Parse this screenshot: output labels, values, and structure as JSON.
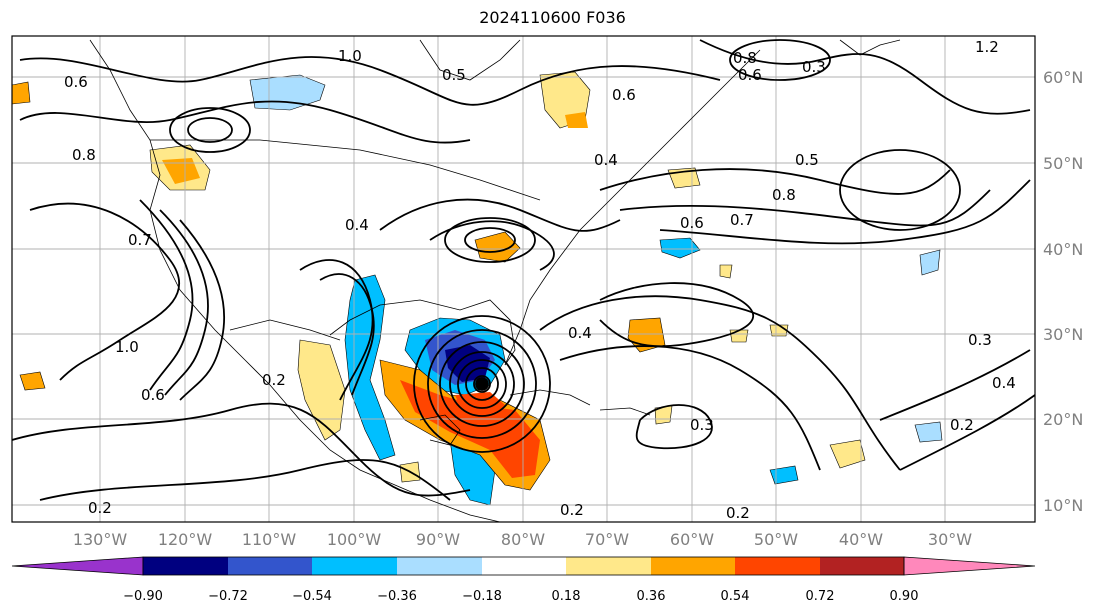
{
  "title": "2024110600 F036",
  "longitude_labels": [
    "130°W",
    "120°W",
    "110°W",
    "100°W",
    "90°W",
    "80°W",
    "70°W",
    "60°W",
    "50°W",
    "40°W",
    "30°W"
  ],
  "latitude_labels": [
    "60°N",
    "50°N",
    "40°N",
    "30°N",
    "20°N",
    "10°N"
  ],
  "colorbar": {
    "ticks": [
      "−0.90",
      "−0.72",
      "−0.54",
      "−0.36",
      "−0.18",
      "0.18",
      "0.36",
      "0.54",
      "0.72",
      "0.90"
    ],
    "colors": [
      "#9933cc",
      "#000080",
      "#3355cc",
      "#00bfff",
      "#aadeff",
      "#ffffff",
      "#ffe88a",
      "#ffa500",
      "#ff4500",
      "#b22222",
      "#ff88bb"
    ]
  },
  "contour_labels": [
    "0.2",
    "0.2",
    "0.2",
    "0.2",
    "0.2",
    "0.3",
    "0.3",
    "0.3",
    "0.4",
    "0.4",
    "0.4",
    "0.4",
    "0.5",
    "0.5",
    "0.6",
    "0.6",
    "0.6",
    "0.6",
    "0.6",
    "0.7",
    "0.7",
    "0.8",
    "0.8",
    "0.8",
    "1.0",
    "1.0",
    "1.2"
  ],
  "colors": {
    "land_line": "#000000",
    "grid": "#b0b0b0",
    "contour": "#000000"
  }
}
